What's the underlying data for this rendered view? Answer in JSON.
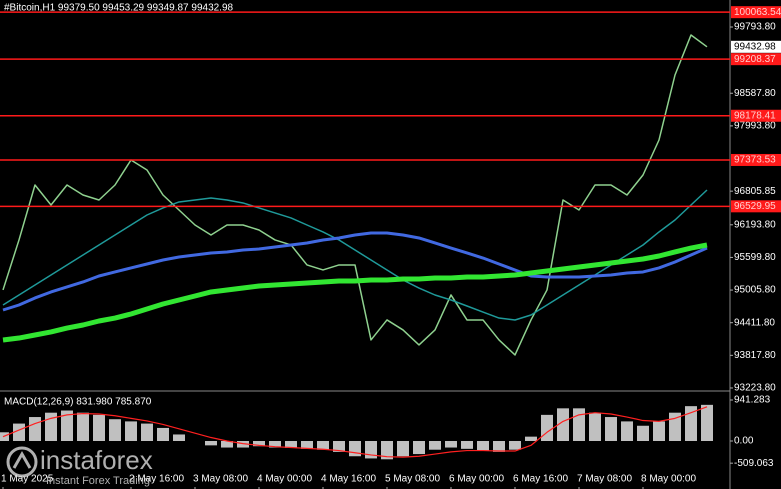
{
  "chart_data": [
    {
      "type": "line",
      "title": "#Bitcoin,H1  99379.50 99453.29 99349.87 99432.98",
      "categories": [
        "1 May 2025",
        null,
        null,
        null,
        null,
        null,
        null,
        null,
        "2 May 16:00",
        null,
        null,
        null,
        "3 May 08:00",
        null,
        null,
        null,
        "4 May 00:00",
        null,
        null,
        null,
        "4 May 16:00",
        null,
        null,
        null,
        "5 May 08:00",
        null,
        null,
        null,
        "6 May 00:00",
        null,
        null,
        null,
        "6 May 16:00",
        null,
        null,
        null,
        "7 May 08:00",
        null,
        null,
        null,
        "8 May 00:00",
        null,
        null,
        null,
        null
      ],
      "series": [
        {
          "color": "#8fd18f",
          "width": 1.5,
          "values": [
            95008,
            95918,
            96918,
            96554,
            96918,
            96736,
            96645,
            96918,
            97373,
            97191,
            96736,
            96463,
            96190,
            96008,
            96190,
            96190,
            96099,
            95918,
            95827,
            95463,
            95372,
            95463,
            95463,
            94098,
            94462,
            94280,
            94007,
            94280,
            94917,
            94462,
            94462,
            94098,
            93825,
            94462,
            95008,
            96645,
            96463,
            96918,
            96918,
            96736,
            97100,
            97737,
            98920,
            99648,
            99433
          ]
        },
        {
          "color": "#1f9a9a",
          "width": 1.5,
          "values": [
            94734,
            94916,
            95098,
            95280,
            95462,
            95644,
            95826,
            96008,
            96190,
            96372,
            96500,
            96609,
            96645,
            96682,
            96645,
            96591,
            96500,
            96409,
            96318,
            96190,
            96063,
            95917,
            95735,
            95553,
            95371,
            95189,
            95043,
            94916,
            94825,
            94716,
            94606,
            94497,
            94461,
            94552,
            94734,
            94916,
            95098,
            95280,
            95462,
            95644,
            95826,
            96063,
            96281,
            96554,
            96827
          ]
        },
        {
          "color": "#4169e1",
          "width": 3,
          "values": [
            94643,
            94734,
            94862,
            94971,
            95062,
            95153,
            95262,
            95335,
            95408,
            95480,
            95553,
            95608,
            95644,
            95681,
            95699,
            95735,
            95753,
            95790,
            95826,
            95863,
            95917,
            95954,
            96008,
            96045,
            96045,
            96008,
            95954,
            95863,
            95771,
            95681,
            95589,
            95480,
            95371,
            95262,
            95244,
            95244,
            95244,
            95262,
            95280,
            95316,
            95335,
            95408,
            95517,
            95644,
            95771
          ]
        },
        {
          "color": "#32e632",
          "width": 5,
          "values": [
            94097,
            94133,
            94188,
            94243,
            94315,
            94370,
            94443,
            94497,
            94570,
            94661,
            94752,
            94825,
            94898,
            94971,
            95007,
            95043,
            95080,
            95098,
            95116,
            95134,
            95153,
            95171,
            95171,
            95189,
            95189,
            95207,
            95207,
            95225,
            95225,
            95244,
            95244,
            95262,
            95280,
            95316,
            95353,
            95389,
            95426,
            95462,
            95499,
            95535,
            95571,
            95626,
            95699,
            95771,
            95826
          ]
        }
      ],
      "ylim": [
        93187,
        100285
      ],
      "yticks": [
        {
          "value": 99793.8,
          "label": "99793.80"
        },
        {
          "value": 98587.8,
          "label": "98587.80"
        },
        {
          "value": 97993.8,
          "label": "97993.80"
        },
        {
          "value": 96805.85,
          "label": "96805.85"
        },
        {
          "value": 96193.8,
          "label": "96193.80"
        },
        {
          "value": 95599.8,
          "label": "95599.80"
        },
        {
          "value": 95005.8,
          "label": "95005.80"
        },
        {
          "value": 94411.8,
          "label": "94411.80"
        },
        {
          "value": 93817.8,
          "label": "93817.80"
        },
        {
          "value": 93223.8,
          "label": "93223.80"
        }
      ],
      "levels": [
        {
          "value": 100063.54,
          "label": "100063.54"
        },
        {
          "value": 99208.37,
          "label": "99208.37"
        },
        {
          "value": 98178.41,
          "label": "98178.41"
        },
        {
          "value": 97373.53,
          "label": "97373.53"
        },
        {
          "value": 96529.95,
          "label": "96529.95"
        }
      ],
      "level_color": "#ff1a1a",
      "last_price": {
        "value": 99432.98,
        "label": "99432.98"
      },
      "grid": false
    },
    {
      "type": "bar",
      "title": "MACD(12,26,9) 831.980 785.870",
      "series": [
        {
          "type": "bar",
          "color": "#c0c0c0",
          "values": [
            200,
            400,
            550,
            650,
            700,
            650,
            600,
            500,
            450,
            400,
            300,
            150,
            0,
            -100,
            -150,
            -150,
            -120,
            -150,
            -160,
            -180,
            -200,
            -250,
            -350,
            -400,
            -420,
            -350,
            -300,
            -200,
            -150,
            -180,
            -220,
            -250,
            -200,
            100,
            600,
            750,
            750,
            650,
            550,
            450,
            350,
            450,
            650,
            800,
            830
          ]
        },
        {
          "type": "line",
          "color": "#ff2020",
          "values": [
            100,
            250,
            400,
            520,
            600,
            630,
            620,
            580,
            520,
            460,
            380,
            280,
            180,
            80,
            0,
            -60,
            -100,
            -130,
            -150,
            -170,
            -190,
            -220,
            -270,
            -320,
            -360,
            -370,
            -350,
            -300,
            -250,
            -220,
            -220,
            -230,
            -230,
            -100,
            200,
            450,
            600,
            650,
            620,
            550,
            470,
            450,
            520,
            650,
            785
          ]
        }
      ],
      "ylim": [
        -1056,
        1102
      ],
      "yticks": [
        {
          "value": 941.283,
          "label": "941.283"
        },
        {
          "value": 0,
          "label": "0.00"
        },
        {
          "value": -509.063,
          "label": "-509.063"
        }
      ],
      "grid": false
    }
  ],
  "watermark": {
    "brand": "instaforex",
    "tagline": "Instant Forex Trading"
  }
}
